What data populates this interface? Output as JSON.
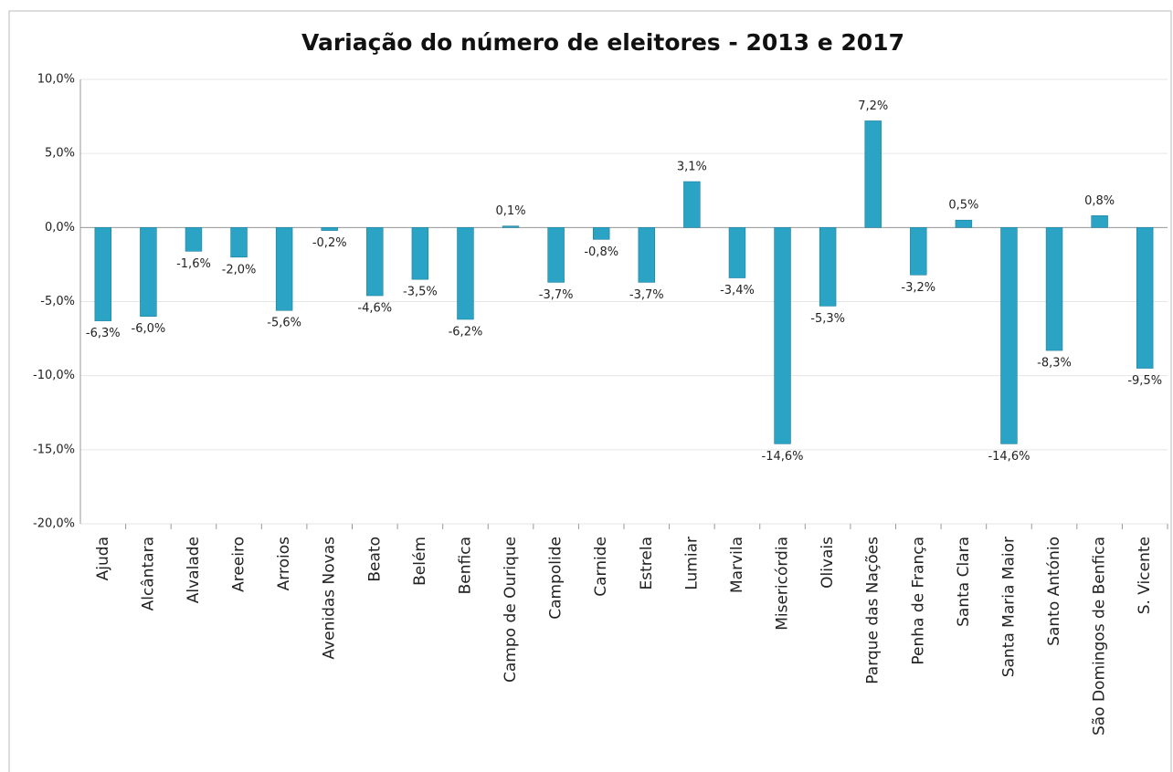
{
  "chart_data": {
    "type": "bar",
    "title": "Variação do número de eleitores - 2013 e 2017",
    "categories": [
      "Ajuda",
      "Alcântara",
      "Alvalade",
      "Areeiro",
      "Arroios",
      "Avenidas Novas",
      "Beato",
      "Belém",
      "Benfica",
      "Campo de Ourique",
      "Campolide",
      "Carnide",
      "Estrela",
      "Lumiar",
      "Marvila",
      "Misericórdia",
      "Olivais",
      "Parque das Nações",
      "Penha de França",
      "Santa Clara",
      "Santa Maria Maior",
      "Santo António",
      "São Domingos de Benfica",
      "S. Vicente"
    ],
    "values": [
      -6.3,
      -6.0,
      -1.6,
      -2.0,
      -5.6,
      -0.2,
      -4.6,
      -3.5,
      -6.2,
      0.1,
      -3.7,
      -0.8,
      -3.7,
      3.1,
      -3.4,
      -14.6,
      -5.3,
      7.2,
      -3.2,
      0.5,
      -14.6,
      -8.3,
      0.8,
      -9.5
    ],
    "value_labels": [
      "-6,3%",
      "-6,0%",
      "-1,6%",
      "-2,0%",
      "-5,6%",
      "-0,2%",
      "-4,6%",
      "-3,5%",
      "-6,2%",
      "0,1%",
      "-3,7%",
      "-0,8%",
      "-3,7%",
      "3,1%",
      "-3,4%",
      "-14,6%",
      "-5,3%",
      "7,2%",
      "-3,2%",
      "0,5%",
      "-14,6%",
      "-8,3%",
      "0,8%",
      "-9,5%"
    ],
    "color": "#2ba3c4",
    "ylim": [
      -20,
      10
    ],
    "yticks": [
      {
        "value": 10,
        "label": "10,0%"
      },
      {
        "value": 5,
        "label": "5,0%"
      },
      {
        "value": 0,
        "label": "0,0%"
      },
      {
        "value": -5,
        "label": "-5,0%"
      },
      {
        "value": -10,
        "label": "-10,0%"
      },
      {
        "value": -15,
        "label": "-15,0%"
      },
      {
        "value": -20,
        "label": "-20,0%"
      }
    ],
    "grid": true
  }
}
